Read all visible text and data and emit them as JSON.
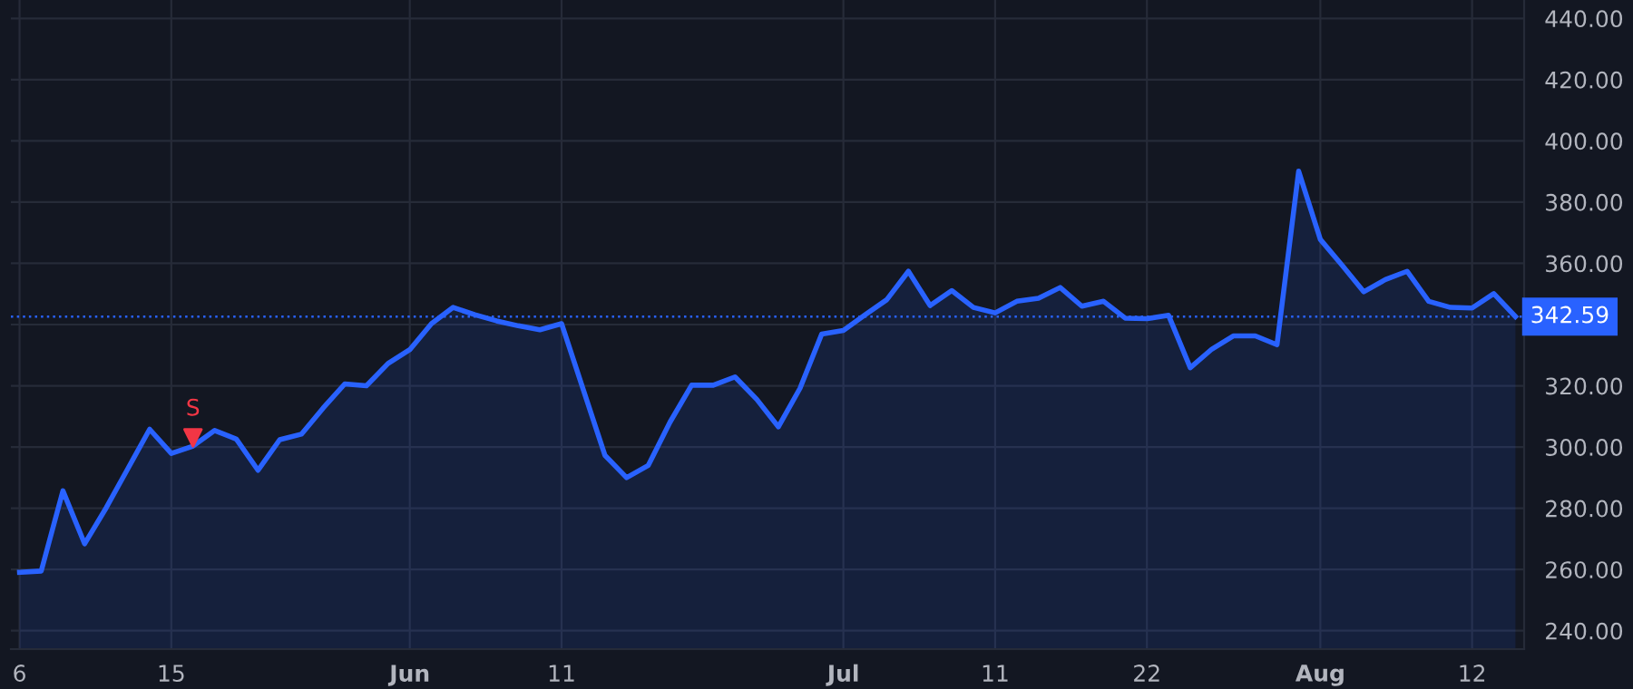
{
  "chart_data": {
    "type": "area",
    "categories": [
      "6",
      null,
      null,
      null,
      null,
      null,
      null,
      "15",
      null,
      null,
      null,
      null,
      null,
      null,
      null,
      null,
      null,
      null,
      "Jun",
      null,
      null,
      null,
      null,
      null,
      null,
      "11",
      null,
      null,
      null,
      null,
      null,
      null,
      null,
      null,
      null,
      null,
      null,
      null,
      "Jul",
      null,
      null,
      null,
      null,
      null,
      null,
      "11",
      null,
      null,
      null,
      null,
      null,
      null,
      "22",
      null,
      null,
      null,
      null,
      null,
      null,
      null,
      "Aug",
      null,
      null,
      null,
      null,
      null,
      null,
      "12",
      null,
      null
    ],
    "series": [
      {
        "color": "#2962ff",
        "values": [
          259.1,
          259.5,
          285.7,
          268.4,
          280.2,
          293,
          305.8,
          297.9,
          300.3,
          305.4,
          302.6,
          292.4,
          302.4,
          304.2,
          312.7,
          320.6,
          320,
          327.3,
          331.8,
          340.3,
          345.6,
          343.2,
          341.2,
          339.6,
          338.3,
          340.3,
          318.8,
          297.3,
          290,
          294,
          308.1,
          320.2,
          320.2,
          322.9,
          315.6,
          306.6,
          319.2,
          336.9,
          338.1,
          343.2,
          348.1,
          357.4,
          346.2,
          351.1,
          345.6,
          343.8,
          347.6,
          348.6,
          352.1,
          346,
          347.6,
          342.1,
          341.9,
          343,
          325.9,
          332,
          336.3,
          336.3,
          333.4,
          390.1,
          367.8,
          359.4,
          350.7,
          354.7,
          357.4,
          347.6,
          345.6,
          345.4,
          350.1,
          342.6
        ]
      },
      {
        "type": "scatter",
        "name": "S",
        "color": "#f23645",
        "marker": "triangle",
        "values": [
          null,
          null,
          null,
          null,
          null,
          null,
          null,
          null,
          303,
          null,
          null,
          null,
          null,
          null,
          null,
          null,
          null,
          null,
          null,
          null,
          null,
          null,
          null,
          null,
          null,
          null,
          null,
          null,
          null,
          null,
          null,
          null,
          null,
          null,
          null,
          null,
          null,
          null,
          null,
          null,
          null,
          null,
          null,
          null,
          null,
          null,
          null,
          null,
          null,
          null,
          null,
          null,
          null,
          null,
          null,
          null,
          null,
          null,
          null,
          null,
          null,
          null,
          null,
          null,
          null,
          null,
          null,
          null,
          null,
          null
        ]
      }
    ],
    "ylim": [
      234,
      446
    ],
    "yticks": [
      {
        "value": 240,
        "label": "240.00"
      },
      {
        "value": 260,
        "label": "260.00"
      },
      {
        "value": 280,
        "label": "280.00"
      },
      {
        "value": 300,
        "label": "300.00"
      },
      {
        "value": 320,
        "label": "320.00"
      },
      {
        "value": 340,
        "label": null
      },
      {
        "value": 360,
        "label": "360.00"
      },
      {
        "value": 380,
        "label": "380.00"
      },
      {
        "value": 400,
        "label": "400.00"
      },
      {
        "value": 420,
        "label": "420.00"
      },
      {
        "value": 440,
        "label": "440.00"
      }
    ],
    "ref_lines": [
      {
        "axis": "y",
        "value": 342.59,
        "label": "342.59",
        "color": "#2962ff",
        "line_style": "dotted"
      }
    ],
    "grid": true,
    "legend": false,
    "marker": "none",
    "line_style": "solid"
  }
}
